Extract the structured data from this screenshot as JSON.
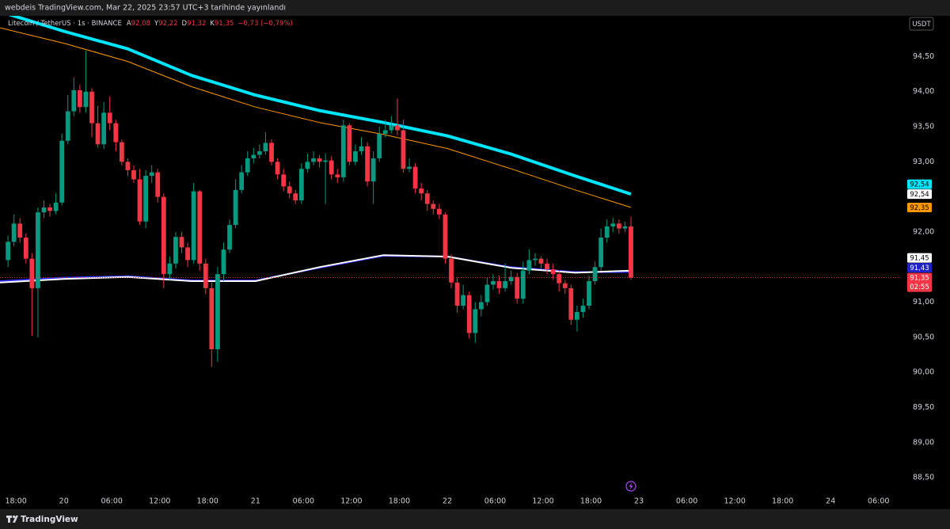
{
  "header": "webdeis TradingView.com, Mar 22, 2025 23:57 UTC+3 tarihinde yayınlandı",
  "footer": "TradingView",
  "chart_data": {
    "type": "candlestick",
    "symbol": "Litecoin / TetherUS · 1s · BINANCE",
    "ohlc_legend": [
      {
        "key": "A",
        "label": "92,08"
      },
      {
        "key": "Y",
        "label": "92,22"
      },
      {
        "key": "D",
        "label": "91,32"
      },
      {
        "key": "K",
        "label": "91,35"
      }
    ],
    "change": "−0,73 (−0,79%)",
    "currency": "USDT",
    "countdown": "02:55",
    "up_color": "#089981",
    "down_color": "#f23645",
    "grid": false,
    "xlim": [
      -2,
      111
    ],
    "ylim": [
      88.31,
      95.08
    ],
    "xticks": [
      {
        "value": 0,
        "label": "18:00"
      },
      {
        "value": 6,
        "label": "20"
      },
      {
        "value": 12,
        "label": "06:00"
      },
      {
        "value": 18,
        "label": "12:00"
      },
      {
        "value": 24,
        "label": "18:00"
      },
      {
        "value": 30,
        "label": "21"
      },
      {
        "value": 36,
        "label": "06:00"
      },
      {
        "value": 42,
        "label": "12:00"
      },
      {
        "value": 48,
        "label": "18:00"
      },
      {
        "value": 54,
        "label": "22"
      },
      {
        "value": 60,
        "label": "06:00"
      },
      {
        "value": 66,
        "label": "12:00"
      },
      {
        "value": 72,
        "label": "18:00"
      },
      {
        "value": 78,
        "label": "23"
      },
      {
        "value": 84,
        "label": "06:00"
      },
      {
        "value": 90,
        "label": "12:00"
      },
      {
        "value": 96,
        "label": "18:00"
      },
      {
        "value": 102,
        "label": "24"
      },
      {
        "value": 108,
        "label": "06:00"
      }
    ],
    "yticks": [
      {
        "value": 88.5,
        "label": "88,50"
      },
      {
        "value": 89,
        "label": "89,00"
      },
      {
        "value": 89.5,
        "label": "89,50"
      },
      {
        "value": 90,
        "label": "90,00"
      },
      {
        "value": 90.5,
        "label": "90,50"
      },
      {
        "value": 91,
        "label": "91,00"
      },
      {
        "value": 92,
        "label": "92,00"
      },
      {
        "value": 93,
        "label": "93,00"
      },
      {
        "value": 93.5,
        "label": "93,50"
      },
      {
        "value": 94,
        "label": "94,00"
      },
      {
        "value": 94.5,
        "label": "94,50"
      }
    ],
    "x": [
      -1,
      -0.25,
      0.5,
      1.25,
      2,
      2.75,
      3.5,
      4.25,
      5,
      5.75,
      6.5,
      7.25,
      8,
      8.75,
      9.5,
      10.25,
      11,
      11.75,
      12.5,
      13.25,
      14,
      14.75,
      15.5,
      16.25,
      17,
      17.75,
      18.5,
      19.25,
      20,
      20.75,
      21.5,
      22.25,
      23,
      23.75,
      24.5,
      25.25,
      26,
      26.75,
      27.5,
      28.25,
      29,
      29.75,
      30.5,
      31.25,
      32,
      32.75,
      33.5,
      34.25,
      35,
      35.75,
      36.5,
      37.25,
      38,
      38.75,
      39.5,
      40.25,
      41,
      41.75,
      42.5,
      43.25,
      44,
      44.75,
      45.5,
      46.25,
      47,
      47.75,
      48.5,
      49.25,
      50,
      50.75,
      51.5,
      52.25,
      53,
      53.75,
      54.5,
      55.25,
      56,
      56.75,
      57.5,
      58.25,
      59,
      59.75,
      60.5,
      61.25,
      62,
      62.75,
      63.5,
      64.25,
      65,
      65.75,
      66.5,
      67.25,
      68,
      68.75,
      69.5,
      70.25,
      71,
      71.75,
      72.5,
      73.25,
      74,
      74.75,
      75.5,
      76.25,
      77
    ],
    "open": [
      91.6,
      91.86,
      92.12,
      91.92,
      91.62,
      91.2,
      92.28,
      92.35,
      92.3,
      92.42,
      93.3,
      93.72,
      94.02,
      93.78,
      94.0,
      93.55,
      93.25,
      93.7,
      93.55,
      93.28,
      93.0,
      92.88,
      92.75,
      92.15,
      92.8,
      92.85,
      92.5,
      91.4,
      91.55,
      91.93,
      91.78,
      91.6,
      92.58,
      91.55,
      91.2,
      90.33,
      91.4,
      91.75,
      92.1,
      92.6,
      92.85,
      93.05,
      93.1,
      93.15,
      93.27,
      93.0,
      92.82,
      92.65,
      92.55,
      92.45,
      92.9,
      93.0,
      93.05,
      93.0,
      93.02,
      92.82,
      92.78,
      93.52,
      93.0,
      93.15,
      93.22,
      92.72,
      93.05,
      93.4,
      93.45,
      93.52,
      93.45,
      92.9,
      92.93,
      92.62,
      92.55,
      92.4,
      92.33,
      92.25,
      91.62,
      91.28,
      90.95,
      91.1,
      90.56,
      90.9,
      91.0,
      91.25,
      91.3,
      91.2,
      91.3,
      91.36,
      91.05,
      91.45,
      91.6,
      91.62,
      91.55,
      91.47,
      91.4,
      91.27,
      91.2,
      90.75,
      90.86,
      90.95,
      91.3,
      91.5,
      91.92,
      92.08,
      92.12,
      92.05,
      92.08
    ],
    "high": [
      91.95,
      92.25,
      92.2,
      91.98,
      91.7,
      92.35,
      92.45,
      92.4,
      92.55,
      93.4,
      93.95,
      94.2,
      94.1,
      94.58,
      94.05,
      93.8,
      93.85,
      93.93,
      93.6,
      93.32,
      93.05,
      92.95,
      92.9,
      92.88,
      92.95,
      92.9,
      92.55,
      91.65,
      92.0,
      92.0,
      91.85,
      92.7,
      92.6,
      91.62,
      91.28,
      91.5,
      91.85,
      92.18,
      92.75,
      92.95,
      93.15,
      93.2,
      93.25,
      93.42,
      93.32,
      93.05,
      92.9,
      92.72,
      92.6,
      92.98,
      93.12,
      93.15,
      93.1,
      93.12,
      93.08,
      92.9,
      93.6,
      93.55,
      93.25,
      93.35,
      93.28,
      93.15,
      93.5,
      93.6,
      93.65,
      93.9,
      93.6,
      93.05,
      92.98,
      92.7,
      92.6,
      92.45,
      92.4,
      92.28,
      91.68,
      91.35,
      91.25,
      91.15,
      91.0,
      91.1,
      91.35,
      91.4,
      91.38,
      91.55,
      91.45,
      91.42,
      91.58,
      91.75,
      91.7,
      91.65,
      91.62,
      91.55,
      91.45,
      91.32,
      91.25,
      90.95,
      91.05,
      91.38,
      91.58,
      92.05,
      92.18,
      92.2,
      92.18,
      92.15,
      92.22
    ],
    "low": [
      91.5,
      91.8,
      91.85,
      91.55,
      90.52,
      90.5,
      92.2,
      92.22,
      92.25,
      92.38,
      93.25,
      93.65,
      93.7,
      93.7,
      93.35,
      93.2,
      93.18,
      93.45,
      93.15,
      92.95,
      92.8,
      92.7,
      92.1,
      92.05,
      92.7,
      92.42,
      91.2,
      91.32,
      91.48,
      91.7,
      91.5,
      91.55,
      91.45,
      91.12,
      90.08,
      90.15,
      91.3,
      91.7,
      92.05,
      92.55,
      92.8,
      92.98,
      93.05,
      93.1,
      92.95,
      92.75,
      92.58,
      92.48,
      92.4,
      92.4,
      92.85,
      92.95,
      92.92,
      92.4,
      92.75,
      92.7,
      92.72,
      92.95,
      92.95,
      93.1,
      92.65,
      92.4,
      93.0,
      93.35,
      93.4,
      93.38,
      92.85,
      92.85,
      92.55,
      92.45,
      92.3,
      92.25,
      92.18,
      91.55,
      91.2,
      90.85,
      90.9,
      90.48,
      90.42,
      90.8,
      90.95,
      91.18,
      91.12,
      91.15,
      91.25,
      90.98,
      90.98,
      91.4,
      91.52,
      91.48,
      91.4,
      91.32,
      91.15,
      91.12,
      90.68,
      90.58,
      90.78,
      90.9,
      91.25,
      91.45,
      91.85,
      92.0,
      91.98,
      92.0,
      91.32
    ],
    "close": [
      91.86,
      92.12,
      91.92,
      91.62,
      91.2,
      92.28,
      92.35,
      92.3,
      92.42,
      93.3,
      93.72,
      94.02,
      93.78,
      94.0,
      93.55,
      93.25,
      93.7,
      93.55,
      93.28,
      93.0,
      92.88,
      92.75,
      92.15,
      92.8,
      92.85,
      92.5,
      91.4,
      91.55,
      91.93,
      91.78,
      91.6,
      92.58,
      91.55,
      91.2,
      90.33,
      91.4,
      91.75,
      92.1,
      92.6,
      92.85,
      93.05,
      93.1,
      93.15,
      93.27,
      93.0,
      92.82,
      92.65,
      92.55,
      92.45,
      92.9,
      93.0,
      93.05,
      93.0,
      93.02,
      92.82,
      92.78,
      93.52,
      93.0,
      93.15,
      93.22,
      92.72,
      93.05,
      93.4,
      93.45,
      93.52,
      93.45,
      92.9,
      92.93,
      92.62,
      92.55,
      92.4,
      92.33,
      92.25,
      91.62,
      91.28,
      90.95,
      91.1,
      90.56,
      90.9,
      91.0,
      91.25,
      91.3,
      91.2,
      91.3,
      91.36,
      91.05,
      91.45,
      91.6,
      91.62,
      91.55,
      91.47,
      91.4,
      91.27,
      91.2,
      90.75,
      90.86,
      90.95,
      91.3,
      91.5,
      91.92,
      92.08,
      92.12,
      92.05,
      92.08,
      91.35
    ],
    "ma_x": [
      -2,
      6,
      14,
      22,
      30,
      38,
      46,
      54,
      62,
      70,
      77
    ],
    "moving_averages": [
      {
        "color": "#3030ff",
        "values": [
          91.3,
          91.35,
          91.37,
          91.31,
          91.31,
          91.49,
          91.66,
          91.65,
          91.5,
          91.43,
          91.43
        ]
      },
      {
        "color": "#ffffff",
        "values": [
          91.28,
          91.33,
          91.36,
          91.3,
          91.3,
          91.5,
          91.67,
          91.65,
          91.49,
          91.42,
          91.45
        ]
      },
      {
        "color": "#ff9800",
        "values": [
          94.91,
          94.69,
          94.43,
          94.07,
          93.78,
          93.56,
          93.39,
          93.19,
          92.9,
          92.6,
          92.35
        ]
      },
      {
        "color": "#00e5ff",
        "values": [
          95.14,
          94.86,
          94.61,
          94.23,
          93.95,
          93.73,
          93.56,
          93.37,
          93.11,
          92.8,
          92.54
        ]
      }
    ],
    "price_labels": [
      {
        "value": 92.54,
        "label": "92,54",
        "color": "#00e5ff",
        "text_color": "#000000"
      },
      {
        "value": 92.54,
        "label": "92,54",
        "color": "#ffffff",
        "text_color": "#000000"
      },
      {
        "value": 92.35,
        "label": "92,35",
        "color": "#ff9800",
        "text_color": "#000000"
      },
      {
        "value": 91.45,
        "label": "91,45",
        "color": "#ffffff",
        "text_color": "#000000"
      },
      {
        "value": 91.43,
        "label": "91,43",
        "color": "#1e22c8",
        "text_color": "#ffffff"
      },
      {
        "value": 91.35,
        "label": "91,35",
        "color": "#f23645",
        "text_color": "#ffffff"
      }
    ]
  }
}
